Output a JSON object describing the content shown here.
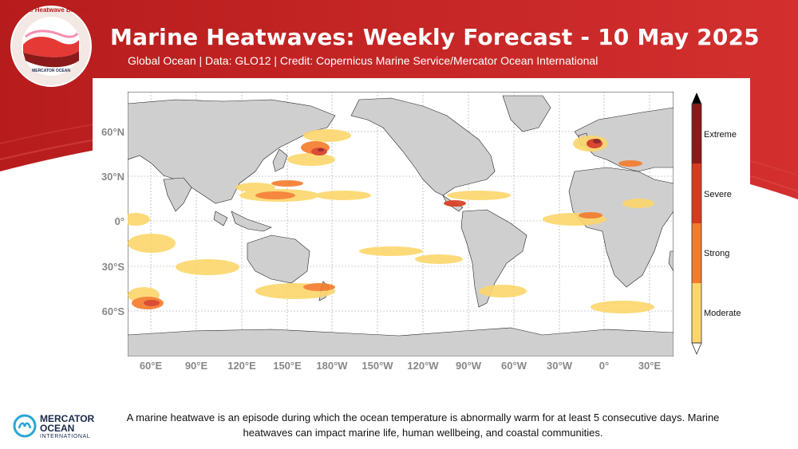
{
  "header": {
    "title": "Marine Heatwaves: Weekly Forecast - 10 May 2025",
    "subtitle": "Global Ocean | Data: GLO12 | Credit: Copernicus Marine Service/Mercator Ocean International",
    "badge_text": "Marine Heatwave Bulletin",
    "badge_org": "MERCATOR OCEAN"
  },
  "map": {
    "lat_labels": [
      "60°N",
      "30°N",
      "0°",
      "30°S",
      "60°S"
    ],
    "lon_labels": [
      "60°E",
      "90°E",
      "120°E",
      "150°E",
      "180°W",
      "150°W",
      "120°W",
      "90°W",
      "60°W",
      "30°W",
      "0°",
      "30°E"
    ],
    "projection": "plate carree, centered ~ 200°E",
    "land_color": "#cfcfcf",
    "ocean_color": "#ffffff"
  },
  "legend": {
    "categories": [
      "Extreme",
      "Severe",
      "Strong",
      "Moderate"
    ],
    "colors": {
      "Extreme": "#8b1a1a",
      "Severe": "#d83a1f",
      "Strong": "#f47b2a",
      "Moderate": "#fdd66b"
    }
  },
  "footer": {
    "text": "A marine heatwave is an episode during which the ocean temperature is abnormally warm for at least 5 consecutive days. Marine heatwaves can impact marine life, human wellbeing, and coastal communities."
  },
  "brand": {
    "line1": "MERCATOR",
    "line2": "OCEAN",
    "line3": "INTERNATIONAL",
    "accent": "#c62828"
  }
}
